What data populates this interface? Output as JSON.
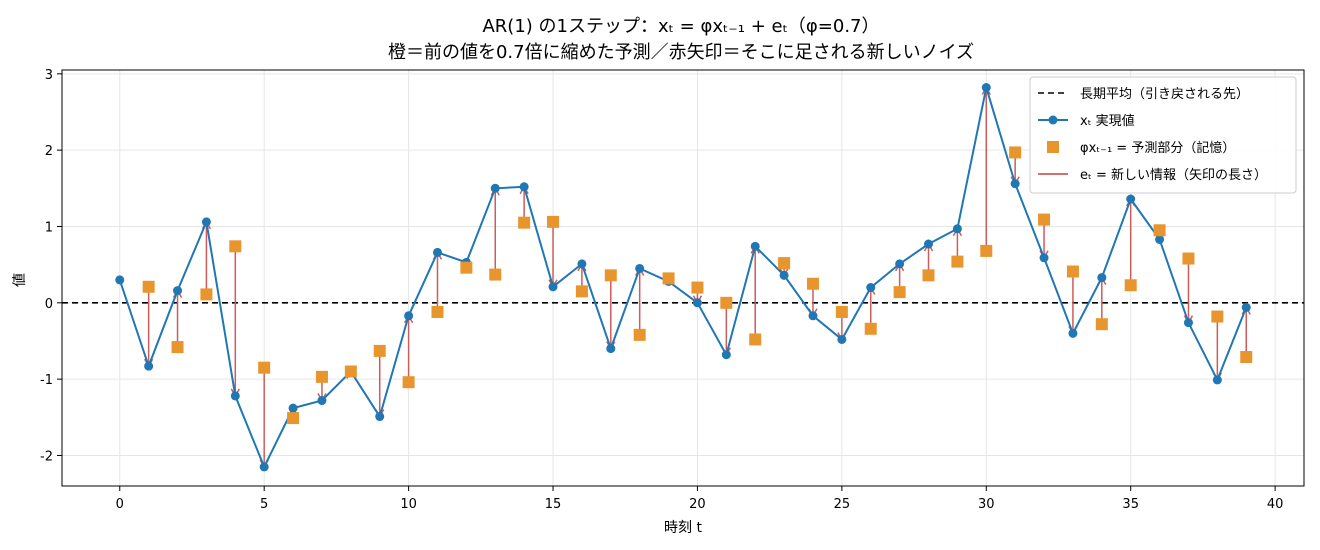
{
  "chart_data": {
    "type": "line",
    "title_line1": "AR(1) の1ステップ：xₜ = φxₜ₋₁ + eₜ（φ=0.7）",
    "title_line2": "橙＝前の値を0.7倍に縮めた予測／赤矢印＝そこに足される新しいノイズ",
    "xlabel": "時刻 t",
    "ylabel": "値",
    "xlim": [
      -2,
      41
    ],
    "ylim": [
      -2.4,
      3.05
    ],
    "xticks": [
      0,
      5,
      10,
      15,
      20,
      25,
      30,
      35,
      40
    ],
    "yticks": [
      -2,
      -1,
      0,
      1,
      2,
      3
    ],
    "grid": true,
    "legend_position": "top-right",
    "mean_line": 0,
    "colors": {
      "actual": "#1f77b4",
      "prediction": "#e8952e",
      "noise": "#cd5c5c",
      "mean": "#000000"
    },
    "legend": [
      {
        "key": "mean",
        "label": "長期平均（引き戻される先）"
      },
      {
        "key": "actual",
        "label": "xₜ 実現値"
      },
      {
        "key": "prediction",
        "label": "φxₜ₋₁ = 予測部分（記憶）"
      },
      {
        "key": "noise",
        "label": "eₜ = 新しい情報（矢印の長さ）"
      }
    ],
    "series": [
      {
        "name": "xₜ 実現値",
        "x": [
          0,
          1,
          2,
          3,
          4,
          5,
          6,
          7,
          8,
          9,
          10,
          11,
          12,
          13,
          14,
          15,
          16,
          17,
          18,
          19,
          20,
          21,
          22,
          23,
          24,
          25,
          26,
          27,
          28,
          29,
          30,
          31,
          32,
          33,
          34,
          35,
          36,
          37,
          38,
          39
        ],
        "values": [
          0.3,
          -0.83,
          0.16,
          1.06,
          -1.22,
          -2.15,
          -1.38,
          -1.28,
          -0.9,
          -1.49,
          -0.17,
          0.66,
          0.53,
          1.5,
          1.52,
          0.21,
          0.51,
          -0.6,
          0.45,
          0.28,
          0.0,
          -0.68,
          0.74,
          0.36,
          -0.17,
          -0.48,
          0.2,
          0.51,
          0.77,
          0.97,
          2.82,
          1.56,
          0.59,
          -0.4,
          0.33,
          1.36,
          0.83,
          -0.26,
          -1.01,
          -0.06
        ]
      },
      {
        "name": "φxₜ₋₁ = 予測部分（記憶）",
        "x": [
          1,
          2,
          3,
          4,
          5,
          6,
          7,
          8,
          9,
          10,
          11,
          12,
          13,
          14,
          15,
          16,
          17,
          18,
          19,
          20,
          21,
          22,
          23,
          24,
          25,
          26,
          27,
          28,
          29,
          30,
          31,
          32,
          33,
          34,
          35,
          36,
          37,
          38,
          39
        ],
        "values": [
          0.21,
          -0.58,
          0.11,
          0.74,
          -0.85,
          -1.51,
          -0.97,
          -0.9,
          -0.63,
          -1.04,
          -0.12,
          0.46,
          0.37,
          1.05,
          1.06,
          0.15,
          0.36,
          -0.42,
          0.32,
          0.2,
          0.0,
          -0.48,
          0.52,
          0.25,
          -0.12,
          -0.34,
          0.14,
          0.36,
          0.54,
          0.68,
          1.97,
          1.09,
          0.41,
          -0.28,
          0.23,
          0.95,
          0.58,
          -0.18,
          -0.71
        ]
      }
    ]
  }
}
